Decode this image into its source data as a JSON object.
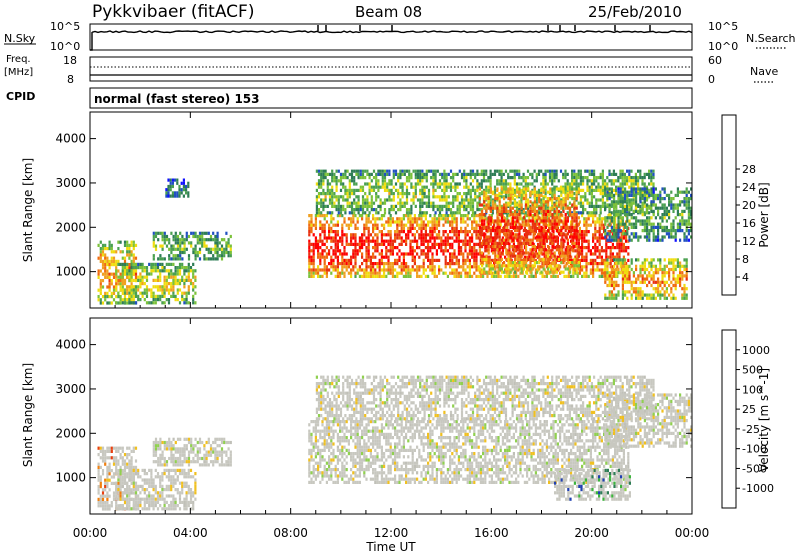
{
  "header": {
    "station": "Pykkvibaer (fitACF)",
    "beam": "Beam 08",
    "date": "25/Feb/2010"
  },
  "panels": {
    "nsky": {
      "left_label": "N.Sky",
      "left_top_tick": "10^5",
      "left_bottom_tick": "10^0",
      "right_top_tick": "10^5",
      "right_bottom_tick": "10^0",
      "right_label": "N.Search"
    },
    "freq": {
      "left_label_line1": "Freq.",
      "left_label_line2": "[MHz]",
      "left_top_tick": "18",
      "left_bottom_tick": "8",
      "right_top_tick": "60",
      "right_bottom_tick": "0",
      "right_label": "Nave"
    },
    "cpid": {
      "label": "CPID",
      "text": "normal (fast stereo) 153"
    }
  },
  "chart_data": [
    {
      "type": "heatmap",
      "name": "power",
      "ylabel": "Slant Range [km]",
      "yticks": [
        "1000",
        "2000",
        "3000",
        "4000"
      ],
      "ylim": [
        180,
        4600
      ],
      "xlim": [
        0,
        24
      ],
      "colorbar_label": "Power [dB]",
      "colorbar_ticks": [
        "4",
        "8",
        "12",
        "16",
        "20",
        "24",
        "28"
      ],
      "colorbar_colors": [
        "#1010ff",
        "#2050c0",
        "#2e7d55",
        "#4aa050",
        "#7cc23a",
        "#f0dd10",
        "#f0a020",
        "#f06a10",
        "#e83010",
        "#ff0000"
      ],
      "regions": [
        {
          "t0": 0.3,
          "t1": 1.8,
          "r0": 300,
          "r1": 1700,
          "level": 0.7
        },
        {
          "t0": 1.0,
          "t1": 4.2,
          "r0": 300,
          "r1": 1200,
          "level": 0.55
        },
        {
          "t0": 2.5,
          "t1": 5.6,
          "r0": 1300,
          "r1": 1900,
          "level": 0.4
        },
        {
          "t0": 3.0,
          "t1": 3.9,
          "r0": 2700,
          "r1": 3100,
          "level": 0.2
        },
        {
          "t0": 8.7,
          "t1": 21.5,
          "r0": 900,
          "r1": 2300,
          "level": 0.95
        },
        {
          "t0": 9.0,
          "t1": 22.5,
          "r0": 2300,
          "r1": 3300,
          "level": 0.45
        },
        {
          "t0": 15.5,
          "t1": 19.5,
          "r0": 1000,
          "r1": 2900,
          "level": 0.9
        },
        {
          "t0": 20.5,
          "t1": 23.8,
          "r0": 400,
          "r1": 1300,
          "level": 0.7
        },
        {
          "t0": 20.5,
          "t1": 24.0,
          "r0": 1700,
          "r1": 2900,
          "level": 0.35
        }
      ]
    },
    {
      "type": "heatmap",
      "name": "velocity",
      "ylabel": "Slant Range [km]",
      "yticks": [
        "1000",
        "2000",
        "3000",
        "4000"
      ],
      "ylim": [
        180,
        4600
      ],
      "xlim": [
        0,
        24
      ],
      "xticks": [
        "00:00",
        "04:00",
        "08:00",
        "12:00",
        "16:00",
        "20:00",
        "00:00"
      ],
      "xlabel": "Time UT",
      "colorbar_label": "Velocity [m s^-1]",
      "colorbar_ticks": [
        "1000",
        "500",
        "100",
        "25",
        "-25",
        "-100",
        "-500",
        "-1000"
      ],
      "colorbar_colors": [
        "#2040b0",
        "#2e7d55",
        "#3cb43c",
        "#90d050",
        "#c0c0b8",
        "#f0c020",
        "#f08010",
        "#e84010",
        "#ff0000"
      ],
      "ground_color": "#c8c8c0",
      "regions": [
        {
          "t0": 0.3,
          "t1": 1.8,
          "r0": 300,
          "r1": 1700,
          "level": 0.75
        },
        {
          "t0": 1.0,
          "t1": 4.2,
          "r0": 300,
          "r1": 1200,
          "level": 0.5
        },
        {
          "t0": 2.5,
          "t1": 5.6,
          "r0": 1300,
          "r1": 1900,
          "level": 0.5
        },
        {
          "t0": 8.7,
          "t1": 21.5,
          "r0": 900,
          "r1": 2300,
          "level": 0.5
        },
        {
          "t0": 9.0,
          "t1": 22.5,
          "r0": 2300,
          "r1": 3300,
          "level": 0.5
        },
        {
          "t0": 18.5,
          "t1": 21.5,
          "r0": 500,
          "r1": 1200,
          "level": 0.15
        },
        {
          "t0": 20.5,
          "t1": 24.0,
          "r0": 1700,
          "r1": 2900,
          "level": 0.5
        }
      ]
    }
  ]
}
